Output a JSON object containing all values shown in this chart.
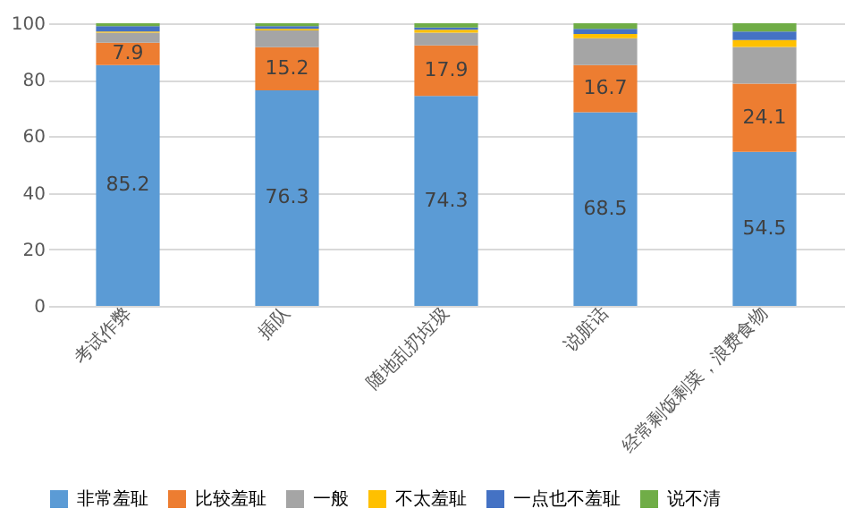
{
  "chart_data": {
    "type": "bar",
    "stacked": true,
    "categories": [
      "考试作弊",
      "插队",
      "随地乱扔垃圾",
      "说脏话",
      "经常剩饭剩菜，浪费食物"
    ],
    "series": [
      {
        "name": "非常羞耻",
        "color": "#5b9bd5",
        "values": [
          85.2,
          76.3,
          74.3,
          68.5,
          54.5
        ],
        "value_labels": [
          "85.2",
          "76.3",
          "74.3",
          "68.5",
          "54.5"
        ]
      },
      {
        "name": "比较羞耻",
        "color": "#ed7d31",
        "values": [
          7.9,
          15.2,
          17.9,
          16.7,
          24.1
        ],
        "value_labels": [
          "7.9",
          "15.2",
          "17.9",
          "16.7",
          "24.1"
        ]
      },
      {
        "name": "一般",
        "color": "#a5a5a5",
        "values": [
          3.6,
          6.0,
          4.5,
          9.5,
          13.0
        ]
      },
      {
        "name": "不太羞耻",
        "color": "#ffc000",
        "values": [
          0.4,
          0.5,
          1.0,
          1.5,
          2.5
        ]
      },
      {
        "name": "一点也不羞耻",
        "color": "#4472c4",
        "values": [
          1.9,
          1.0,
          0.8,
          1.8,
          3.0
        ]
      },
      {
        "name": "说不清",
        "color": "#70ad47",
        "values": [
          1.0,
          1.0,
          1.5,
          2.0,
          2.9
        ]
      }
    ],
    "ylim": [
      0,
      100
    ],
    "yticks": [
      0,
      20,
      40,
      60,
      80,
      100
    ],
    "grid": "y",
    "legend": "bottom"
  }
}
